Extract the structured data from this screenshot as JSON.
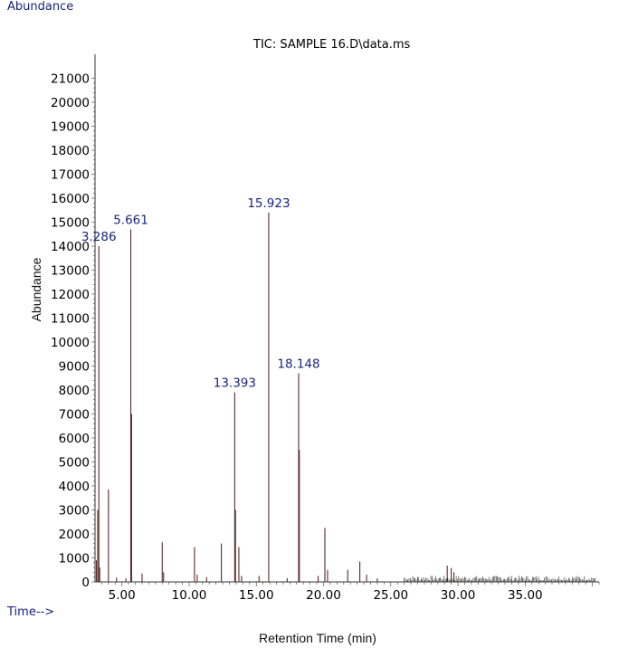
{
  "header": {
    "abundance_label": "Abundance",
    "time_label": "Time-->"
  },
  "chart_data": {
    "type": "line",
    "title": "TIC: SAMPLE 16.D\\data.ms",
    "xlabel": "Retention Time (min)",
    "ylabel": "Abundance",
    "xlim": [
      3.0,
      40.5
    ],
    "ylim": [
      0,
      22000
    ],
    "xticks": [
      "5.00",
      "10.00",
      "15.00",
      "20.00",
      "25.00",
      "30.00",
      "35.00"
    ],
    "yticks": [
      "0",
      "1000",
      "2000",
      "3000",
      "4000",
      "5000",
      "6000",
      "7000",
      "8000",
      "9000",
      "10000",
      "11000",
      "12000",
      "13000",
      "14000",
      "15000",
      "16000",
      "17000",
      "18000",
      "19000",
      "20000",
      "21000"
    ],
    "peak_labels": [
      {
        "time": 3.286,
        "text": "3.286",
        "abundance": 14000
      },
      {
        "time": 5.661,
        "text": "5.661",
        "abundance": 14700
      },
      {
        "time": 13.393,
        "text": "13.393",
        "abundance": 7900
      },
      {
        "time": 15.923,
        "text": "15.923",
        "abundance": 15400
      },
      {
        "time": 18.148,
        "text": "18.148",
        "abundance": 8700
      }
    ],
    "peaks": [
      [
        3.1,
        900
      ],
      [
        3.2,
        3000
      ],
      [
        3.286,
        14000
      ],
      [
        3.35,
        600
      ],
      [
        4.0,
        3850
      ],
      [
        4.6,
        180
      ],
      [
        5.3,
        150
      ],
      [
        5.661,
        14700
      ],
      [
        5.72,
        7000
      ],
      [
        6.5,
        350
      ],
      [
        8.0,
        1650
      ],
      [
        8.1,
        400
      ],
      [
        10.4,
        1450
      ],
      [
        10.6,
        300
      ],
      [
        11.3,
        200
      ],
      [
        12.4,
        1600
      ],
      [
        13.393,
        7900
      ],
      [
        13.45,
        3000
      ],
      [
        13.7,
        1450
      ],
      [
        13.9,
        250
      ],
      [
        15.2,
        250
      ],
      [
        15.923,
        15400
      ],
      [
        17.3,
        150
      ],
      [
        18.148,
        8700
      ],
      [
        18.2,
        5500
      ],
      [
        19.6,
        250
      ],
      [
        20.1,
        2250
      ],
      [
        20.3,
        500
      ],
      [
        21.8,
        500
      ],
      [
        22.7,
        850
      ],
      [
        23.2,
        300
      ],
      [
        24.0,
        150
      ],
      [
        29.2,
        680
      ],
      [
        29.5,
        580
      ],
      [
        29.7,
        400
      ]
    ]
  }
}
